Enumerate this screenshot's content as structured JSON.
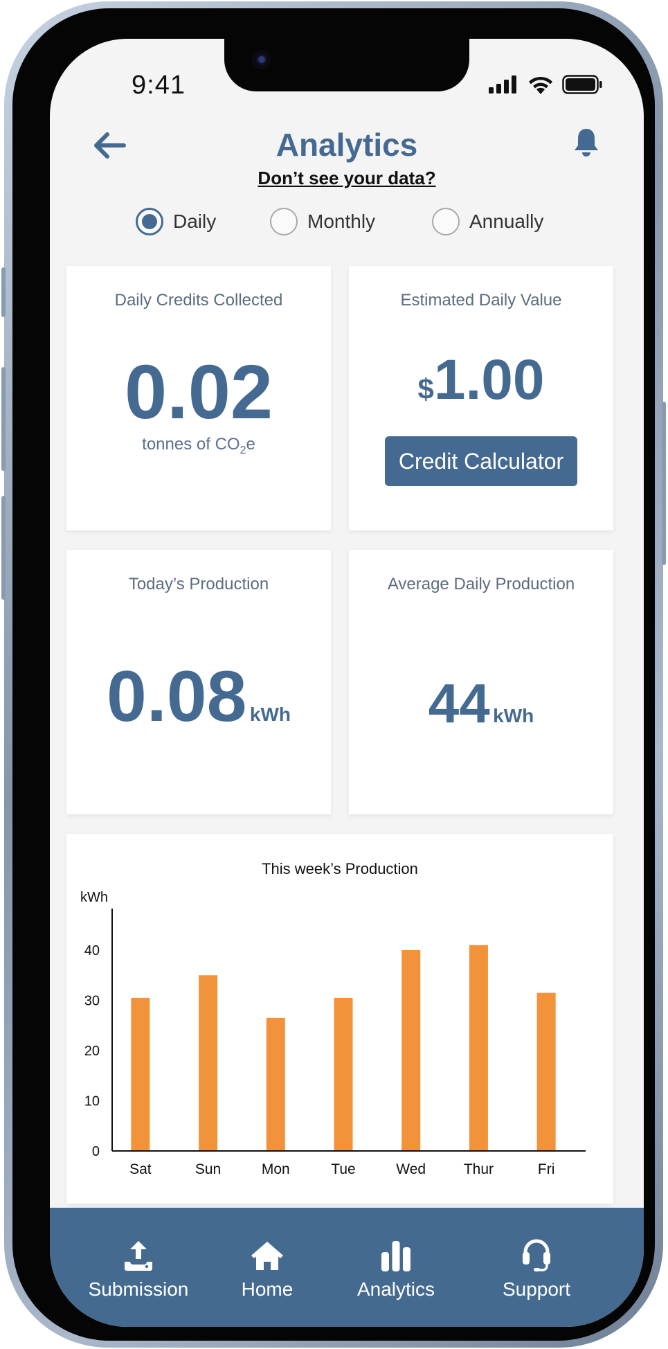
{
  "status_bar": {
    "time": "9:41"
  },
  "header": {
    "title": "Analytics",
    "help_link": "Don’t see your data?"
  },
  "period_selector": {
    "options": [
      "Daily",
      "Monthly",
      "Annually"
    ],
    "selected": "Daily"
  },
  "cards": {
    "credits": {
      "label": "Daily Credits Collected",
      "value": "0.02",
      "unit_prefix": "tonnes of CO",
      "unit_sub": "2",
      "unit_suffix": "e"
    },
    "value": {
      "label": "Estimated Daily Value",
      "currency": "$",
      "amount": "1.00",
      "button": "Credit Calculator"
    },
    "today": {
      "label": "Today’s Production",
      "value": "0.08",
      "unit": "kWh"
    },
    "average": {
      "label": "Average Daily Production",
      "value": "44",
      "unit": "kWh"
    }
  },
  "chart_data": {
    "type": "bar",
    "title": "This week’s Production",
    "ylabel": "kWh",
    "xlabel": "",
    "categories": [
      "Sat",
      "Sun",
      "Mon",
      "Tue",
      "Wed",
      "Thur",
      "Fri"
    ],
    "values": [
      30.5,
      35,
      26.5,
      30.5,
      40,
      41,
      31.5
    ],
    "yticks": [
      0,
      10,
      20,
      30,
      40
    ],
    "ylim": [
      0,
      48
    ],
    "bar_color": "#f2923b",
    "grid": false
  },
  "bottom_nav": [
    {
      "label": "Submission",
      "icon": "upload-icon"
    },
    {
      "label": "Home",
      "icon": "home-icon"
    },
    {
      "label": "Analytics",
      "icon": "bar-chart-icon"
    },
    {
      "label": "Support",
      "icon": "headset-icon"
    }
  ],
  "colors": {
    "primary": "#456a92",
    "accent": "#f2923b",
    "nav_bg": "#456a8f",
    "screen_bg": "#f4f4f4"
  }
}
